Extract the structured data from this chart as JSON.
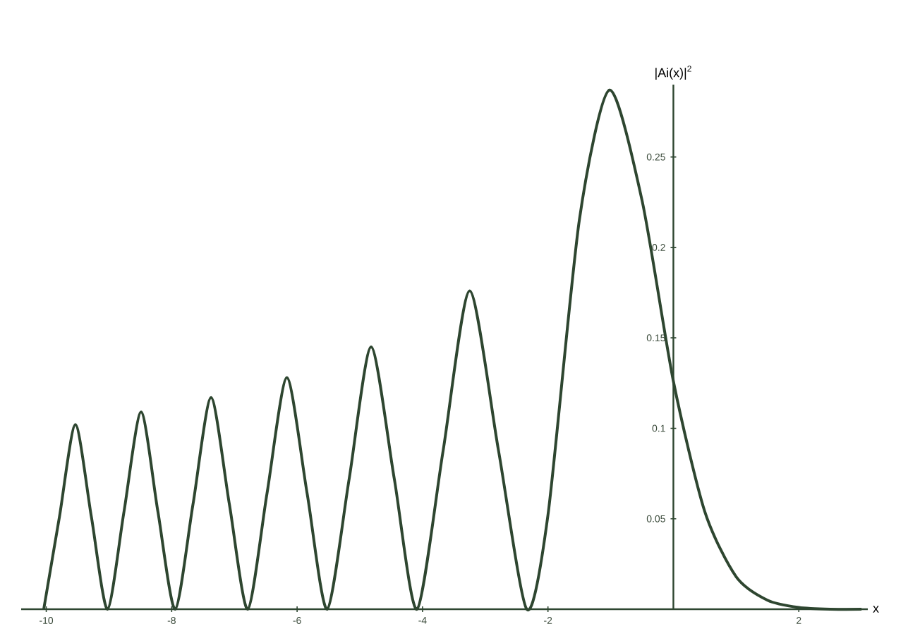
{
  "chart_data": {
    "type": "line",
    "xlabel": "x",
    "ylabel": "|Ai(x)|$^{2}$",
    "x": [
      -10.04,
      -9.79,
      -9.535,
      -9.28,
      -9.023,
      -8.76,
      -8.488,
      -8.22,
      -7.944,
      -7.66,
      -7.372,
      -7.08,
      -6.787,
      -6.48,
      -6.163,
      -5.84,
      -5.521,
      -5.17,
      -4.82,
      -4.45,
      -4.088,
      -3.67,
      -3.248,
      -2.79,
      -2.338,
      -2.0,
      -1.5,
      -1.019,
      -0.5,
      0,
      0.5,
      1,
      1.5,
      2,
      2.5,
      3
    ],
    "series": [
      {
        "color": "#2e4630",
        "values": [
          0,
          0.051,
          0.102,
          0.051,
          0,
          0.054,
          0.109,
          0.054,
          0,
          0.058,
          0.117,
          0.058,
          0,
          0.064,
          0.128,
          0.064,
          0,
          0.072,
          0.145,
          0.072,
          0,
          0.088,
          0.176,
          0.088,
          0,
          0.052,
          0.215,
          0.287,
          0.226,
          0.126,
          0.054,
          0.018,
          0.005,
          0.001,
          0,
          0
        ]
      }
    ],
    "xlim": [
      -10.4,
      3.1
    ],
    "ylim": [
      0,
      0.29
    ],
    "xticks": [
      -10,
      -8,
      -6,
      -4,
      -2,
      {
        "value": 0,
        "label": null
      },
      2
    ],
    "yticks": [
      0.05,
      0.1,
      0.15,
      0.2,
      0.25
    ],
    "grid": false,
    "marker": "none",
    "line_style": "solid"
  }
}
